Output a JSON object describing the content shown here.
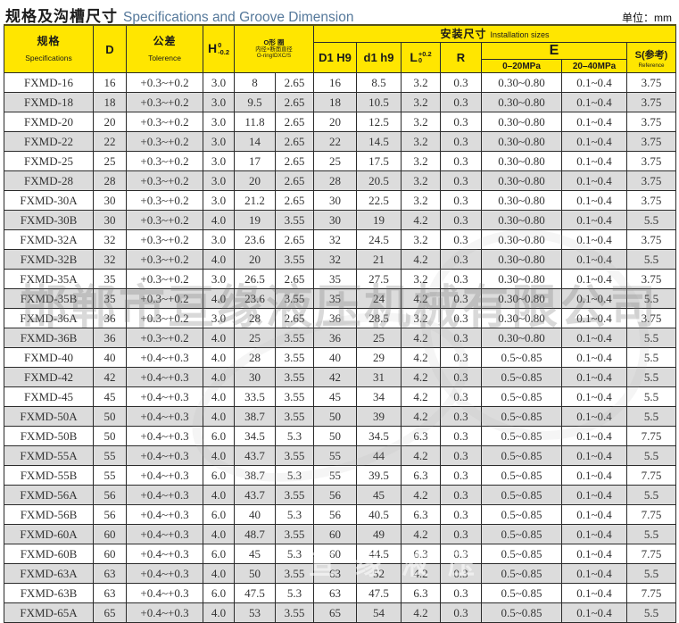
{
  "header": {
    "title_zh": "规格及沟槽尺寸",
    "title_en": "Specifications and Groove Dimension",
    "unit_label": "单位：mm"
  },
  "colors": {
    "header_yellow": "#ffe600",
    "alt_row_gray": "#dcdcdc",
    "title_en_blue": "#56799b",
    "border_dark": "#2b2b2b"
  },
  "table": {
    "headers": {
      "spec_zh": "规格",
      "spec_en": "Specifications",
      "d": "D",
      "tol_zh": "公差",
      "tol_en": "Tolerence",
      "h_base": "H",
      "h_sup": "0",
      "h_sub": "-0.2",
      "oring_line1": "O形 圈",
      "oring_line2": "内径×断面直径",
      "oring_line3": "O-ringIDXC/S",
      "install_zh": "安装尺寸",
      "install_en": "Installation sizes",
      "d1h9": "D1 H9",
      "d1h9_lower": "d1 h9",
      "l_base": "L",
      "l_sup": "+0.2",
      "l_sub": "0",
      "r": "R",
      "e": "E",
      "e_low": "0–20MPa",
      "e_high": "20–40MPa",
      "s_label": "S(参考)",
      "s_sub": "Reference"
    },
    "rows": [
      [
        "FXMD-16",
        "16",
        "+0.3~+0.2",
        "3.0",
        "8",
        "2.65",
        "16",
        "8.5",
        "3.2",
        "0.3",
        "0.30~0.80",
        "0.1~0.4",
        "3.75"
      ],
      [
        "FXMD-18",
        "18",
        "+0.3~+0.2",
        "3.0",
        "9.5",
        "2.65",
        "18",
        "10.5",
        "3.2",
        "0.3",
        "0.30~0.80",
        "0.1~0.4",
        "3.75"
      ],
      [
        "FXMD-20",
        "20",
        "+0.3~+0.2",
        "3.0",
        "11.8",
        "2.65",
        "20",
        "12.5",
        "3.2",
        "0.3",
        "0.30~0.80",
        "0.1~0.4",
        "3.75"
      ],
      [
        "FXMD-22",
        "22",
        "+0.3~+0.2",
        "3.0",
        "14",
        "2.65",
        "22",
        "14.5",
        "3.2",
        "0.3",
        "0.30~0.80",
        "0.1~0.4",
        "3.75"
      ],
      [
        "FXMD-25",
        "25",
        "+0.3~+0.2",
        "3.0",
        "17",
        "2.65",
        "25",
        "17.5",
        "3.2",
        "0.3",
        "0.30~0.80",
        "0.1~0.4",
        "3.75"
      ],
      [
        "FXMD-28",
        "28",
        "+0.3~+0.2",
        "3.0",
        "20",
        "2.65",
        "28",
        "20.5",
        "3.2",
        "0.3",
        "0.30~0.80",
        "0.1~0.4",
        "3.75"
      ],
      [
        "FXMD-30A",
        "30",
        "+0.3~+0.2",
        "3.0",
        "21.2",
        "2.65",
        "30",
        "22.5",
        "3.2",
        "0.3",
        "0.30~0.80",
        "0.1~0.4",
        "3.75"
      ],
      [
        "FXMD-30B",
        "30",
        "+0.3~+0.2",
        "4.0",
        "19",
        "3.55",
        "30",
        "19",
        "4.2",
        "0.3",
        "0.30~0.80",
        "0.1~0.4",
        "5.5"
      ],
      [
        "FXMD-32A",
        "32",
        "+0.3~+0.2",
        "3.0",
        "23.6",
        "2.65",
        "32",
        "24.5",
        "3.2",
        "0.3",
        "0.30~0.80",
        "0.1~0.4",
        "3.75"
      ],
      [
        "FXMD-32B",
        "32",
        "+0.3~+0.2",
        "4.0",
        "20",
        "3.55",
        "32",
        "21",
        "4.2",
        "0.3",
        "0.30~0.80",
        "0.1~0.4",
        "5.5"
      ],
      [
        "FXMD-35A",
        "35",
        "+0.3~+0.2",
        "3.0",
        "26.5",
        "2.65",
        "35",
        "27.5",
        "3.2",
        "0.3",
        "0.30~0.80",
        "0.1~0.4",
        "3.75"
      ],
      [
        "FXMD-35B",
        "35",
        "+0.3~+0.2",
        "4.0",
        "23.6",
        "3.55",
        "35",
        "24",
        "4.2",
        "0.3",
        "0.30~0.80",
        "0.1~0.4",
        "5.5"
      ],
      [
        "FXMD-36A",
        "36",
        "+0.3~+0.2",
        "3.0",
        "28",
        "2.65",
        "36",
        "28.5",
        "3.2",
        "0.3",
        "0.30~0.80",
        "0.1~0.4",
        "3.75"
      ],
      [
        "FXMD-36B",
        "36",
        "+0.3~+0.2",
        "4.0",
        "25",
        "3.55",
        "36",
        "25",
        "4.2",
        "0.3",
        "0.30~0.80",
        "0.1~0.4",
        "5.5"
      ],
      [
        "FXMD-40",
        "40",
        "+0.4~+0.3",
        "4.0",
        "28",
        "3.55",
        "40",
        "29",
        "4.2",
        "0.3",
        "0.5~0.85",
        "0.1~0.4",
        "5.5"
      ],
      [
        "FXMD-42",
        "42",
        "+0.4~+0.3",
        "4.0",
        "30",
        "3.55",
        "42",
        "31",
        "4.2",
        "0.3",
        "0.5~0.85",
        "0.1~0.4",
        "5.5"
      ],
      [
        "FXMD-45",
        "45",
        "+0.4~+0.3",
        "4.0",
        "33.5",
        "3.55",
        "45",
        "34",
        "4.2",
        "0.3",
        "0.5~0.85",
        "0.1~0.4",
        "5.5"
      ],
      [
        "FXMD-50A",
        "50",
        "+0.4~+0.3",
        "4.0",
        "38.7",
        "3.55",
        "50",
        "39",
        "4.2",
        "0.3",
        "0.5~0.85",
        "0.1~0.4",
        "5.5"
      ],
      [
        "FXMD-50B",
        "50",
        "+0.4~+0.3",
        "6.0",
        "34.5",
        "5.3",
        "50",
        "34.5",
        "6.3",
        "0.3",
        "0.5~0.85",
        "0.1~0.4",
        "7.75"
      ],
      [
        "FXMD-55A",
        "55",
        "+0.4~+0.3",
        "4.0",
        "43.7",
        "3.55",
        "55",
        "44",
        "4.2",
        "0.3",
        "0.5~0.85",
        "0.1~0.4",
        "5.5"
      ],
      [
        "FXMD-55B",
        "55",
        "+0.4~+0.3",
        "6.0",
        "38.7",
        "5.3",
        "55",
        "39.5",
        "6.3",
        "0.3",
        "0.5~0.85",
        "0.1~0.4",
        "7.75"
      ],
      [
        "FXMD-56A",
        "56",
        "+0.4~+0.3",
        "4.0",
        "43.7",
        "3.55",
        "56",
        "45",
        "4.2",
        "0.3",
        "0.5~0.85",
        "0.1~0.4",
        "5.5"
      ],
      [
        "FXMD-56B",
        "56",
        "+0.4~+0.3",
        "6.0",
        "40",
        "5.3",
        "56",
        "40.5",
        "6.3",
        "0.3",
        "0.5~0.85",
        "0.1~0.4",
        "7.75"
      ],
      [
        "FXMD-60A",
        "60",
        "+0.4~+0.3",
        "4.0",
        "48.7",
        "3.55",
        "60",
        "49",
        "4.2",
        "0.3",
        "0.5~0.85",
        "0.1~0.4",
        "5.5"
      ],
      [
        "FXMD-60B",
        "60",
        "+0.4~+0.3",
        "6.0",
        "45",
        "5.3",
        "60",
        "44.5",
        "6.3",
        "0.3",
        "0.5~0.85",
        "0.1~0.4",
        "7.75"
      ],
      [
        "FXMD-63A",
        "63",
        "+0.4~+0.3",
        "4.0",
        "50",
        "3.55",
        "63",
        "52",
        "4.2",
        "0.3",
        "0.5~0.85",
        "0.1~0.4",
        "5.5"
      ],
      [
        "FXMD-63B",
        "63",
        "+0.4~+0.3",
        "6.0",
        "47.5",
        "5.3",
        "63",
        "47.5",
        "6.3",
        "0.3",
        "0.5~0.85",
        "0.1~0.4",
        "7.75"
      ],
      [
        "FXMD-65A",
        "65",
        "+0.4~+0.3",
        "4.0",
        "53",
        "3.55",
        "65",
        "54",
        "4.2",
        "0.3",
        "0.5~0.85",
        "0.1~0.4",
        "5.5"
      ]
    ]
  },
  "watermark": {
    "company_text": "邯郸市亘缘液压机械有限公司",
    "bottom_text": "亘缘液压"
  }
}
